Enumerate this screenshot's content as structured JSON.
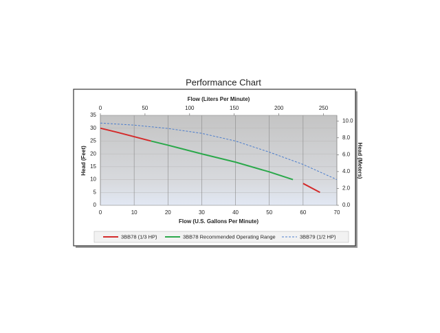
{
  "chart_data": {
    "type": "line",
    "title": "Performance Chart",
    "xlabel": "Flow (U.S. Gallons Per Minute)",
    "x2label": "Flow (Liters Per Minute)",
    "ylabel": "Head (Feet)",
    "y2label": "Head (Meters)",
    "xlim": [
      0,
      70
    ],
    "xticks": [
      0,
      10,
      20,
      30,
      40,
      50,
      60,
      70
    ],
    "x2lim": [
      0,
      265
    ],
    "x2ticks": [
      0,
      50,
      100,
      150,
      200,
      250
    ],
    "ylim": [
      0,
      35
    ],
    "yticks": [
      0,
      5,
      10,
      15,
      20,
      25,
      30,
      35
    ],
    "y2lim": [
      0,
      10.668
    ],
    "y2ticks": [
      {
        "value": 0,
        "label": "0.0"
      },
      {
        "value": 2,
        "label": "2.0"
      },
      {
        "value": 4,
        "label": "4.0"
      },
      {
        "value": 6,
        "label": "6.0"
      },
      {
        "value": 8,
        "label": "8.0"
      },
      {
        "value": 10,
        "label": "10.0"
      }
    ],
    "grid": true,
    "series": [
      {
        "name": "3BB78 (1/3 HP)",
        "color": "#d42a2a",
        "dashed": false,
        "x": [
          0,
          5,
          10,
          15,
          57,
          60,
          65
        ],
        "values": [
          30,
          28.4,
          26.7,
          25,
          null,
          8.5,
          5
        ]
      },
      {
        "name": "3BB78 Recommended Operating Range",
        "color": "#2aa84a",
        "dashed": false,
        "x": [
          15,
          20,
          30,
          40,
          50,
          57
        ],
        "values": [
          25,
          23.4,
          20,
          16.8,
          13,
          10
        ]
      },
      {
        "name": "3BB79 (1/2 HP)",
        "color": "#4a7ccc",
        "dashed": true,
        "x": [
          0,
          10,
          20,
          30,
          40,
          50,
          60,
          70
        ],
        "values": [
          32,
          31.2,
          29.9,
          28,
          25,
          20.7,
          15.9,
          10
        ]
      }
    ]
  }
}
